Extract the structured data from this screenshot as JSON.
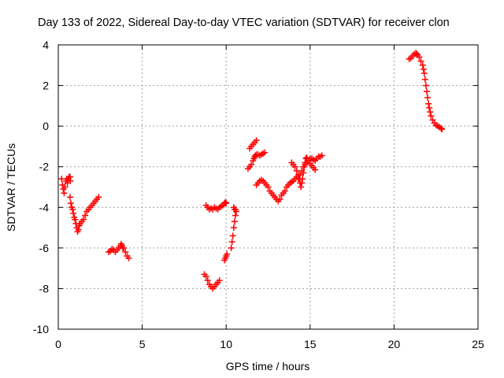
{
  "chart_data": {
    "type": "scatter",
    "title": "Day 133 of 2022, Sidereal Day-to-day VTEC variation (SDTVAR) for receiver clon",
    "xlabel": "GPS time / hours",
    "ylabel": "SDTVAR / TECUs",
    "xlim": [
      0,
      25
    ],
    "ylim": [
      -10,
      4
    ],
    "xticks": [
      0,
      5,
      10,
      15,
      20,
      25
    ],
    "yticks": [
      -10,
      -8,
      -6,
      -4,
      -2,
      0,
      2,
      4
    ],
    "grid": true,
    "marker": "+",
    "marker_color": "#ff0000",
    "series": [
      {
        "name": "SDTVAR",
        "segments": [
          [
            [
              0.2,
              -2.6
            ],
            [
              0.25,
              -2.9
            ],
            [
              0.3,
              -3.1
            ],
            [
              0.35,
              -3.3
            ],
            [
              0.4,
              -3.0
            ],
            [
              0.45,
              -2.7
            ],
            [
              0.5,
              -2.6
            ],
            [
              0.55,
              -2.8
            ],
            [
              0.6,
              -2.6
            ],
            [
              0.65,
              -2.5
            ],
            [
              0.7,
              -2.5
            ],
            [
              0.72,
              -2.7
            ],
            [
              0.7,
              -3.5
            ],
            [
              0.75,
              -3.8
            ],
            [
              0.8,
              -4.0
            ],
            [
              0.85,
              -4.1
            ],
            [
              0.9,
              -4.3
            ],
            [
              0.95,
              -4.5
            ],
            [
              1.0,
              -4.6
            ],
            [
              1.05,
              -4.8
            ],
            [
              1.1,
              -5.0
            ],
            [
              1.15,
              -5.2
            ],
            [
              1.2,
              -5.1
            ],
            [
              1.25,
              -4.9
            ],
            [
              1.3,
              -4.8
            ],
            [
              1.4,
              -4.7
            ],
            [
              1.5,
              -4.6
            ],
            [
              1.6,
              -4.4
            ],
            [
              1.7,
              -4.2
            ],
            [
              1.8,
              -4.1
            ],
            [
              1.9,
              -4.0
            ],
            [
              2.0,
              -3.9
            ],
            [
              2.1,
              -3.8
            ],
            [
              2.2,
              -3.7
            ],
            [
              2.3,
              -3.6
            ],
            [
              2.4,
              -3.5
            ]
          ],
          [
            [
              3.0,
              -6.2
            ],
            [
              3.1,
              -6.15
            ],
            [
              3.2,
              -6.05
            ],
            [
              3.3,
              -6.1
            ],
            [
              3.4,
              -6.2
            ],
            [
              3.5,
              -6.1
            ],
            [
              3.6,
              -6.0
            ],
            [
              3.7,
              -5.9
            ],
            [
              3.75,
              -5.8
            ],
            [
              3.8,
              -5.9
            ],
            [
              3.85,
              -6.0
            ],
            [
              3.9,
              -6.0
            ],
            [
              4.0,
              -6.2
            ],
            [
              4.1,
              -6.4
            ],
            [
              4.2,
              -6.5
            ]
          ],
          [
            [
              8.7,
              -7.3
            ],
            [
              8.8,
              -7.4
            ],
            [
              8.9,
              -7.6
            ],
            [
              9.0,
              -7.8
            ],
            [
              9.1,
              -7.9
            ],
            [
              9.2,
              -8.0
            ],
            [
              9.3,
              -7.9
            ],
            [
              9.4,
              -7.8
            ],
            [
              9.5,
              -7.7
            ],
            [
              9.6,
              -7.6
            ]
          ],
          [
            [
              8.8,
              -3.9
            ],
            [
              8.9,
              -4.0
            ],
            [
              9.0,
              -4.1
            ],
            [
              9.1,
              -4.05
            ],
            [
              9.2,
              -4.1
            ],
            [
              9.3,
              -4.0
            ],
            [
              9.4,
              -4.05
            ],
            [
              9.5,
              -4.1
            ],
            [
              9.6,
              -4.0
            ],
            [
              9.7,
              -3.95
            ],
            [
              9.8,
              -3.9
            ],
            [
              9.9,
              -3.8
            ],
            [
              9.95,
              -3.75
            ],
            [
              10.0,
              -3.8
            ]
          ],
          [
            [
              9.9,
              -6.6
            ],
            [
              9.95,
              -6.5
            ],
            [
              10.0,
              -6.4
            ],
            [
              10.05,
              -6.3
            ],
            [
              10.3,
              -6.0
            ],
            [
              10.35,
              -5.7
            ],
            [
              10.4,
              -5.4
            ],
            [
              10.45,
              -5.0
            ],
            [
              10.5,
              -4.7
            ],
            [
              10.55,
              -4.4
            ],
            [
              10.6,
              -4.2
            ],
            [
              10.5,
              -4.1
            ],
            [
              10.45,
              -4.0
            ],
            [
              10.55,
              -4.1
            ]
          ],
          [
            [
              11.3,
              -2.1
            ],
            [
              11.4,
              -2.0
            ],
            [
              11.5,
              -1.9
            ],
            [
              11.6,
              -1.7
            ],
            [
              11.65,
              -1.6
            ],
            [
              11.7,
              -1.5
            ],
            [
              11.75,
              -1.45
            ],
            [
              11.8,
              -1.4
            ],
            [
              11.9,
              -1.4
            ],
            [
              12.0,
              -1.45
            ],
            [
              12.1,
              -1.4
            ],
            [
              12.2,
              -1.35
            ],
            [
              12.3,
              -1.3
            ]
          ],
          [
            [
              11.4,
              -1.1
            ],
            [
              11.5,
              -1.0
            ],
            [
              11.6,
              -0.9
            ],
            [
              11.7,
              -0.8
            ],
            [
              11.8,
              -0.7
            ]
          ],
          [
            [
              11.8,
              -2.9
            ],
            [
              11.9,
              -2.8
            ],
            [
              12.0,
              -2.7
            ],
            [
              12.1,
              -2.65
            ],
            [
              12.2,
              -2.7
            ],
            [
              12.3,
              -2.8
            ],
            [
              12.4,
              -2.9
            ],
            [
              12.5,
              -3.0
            ],
            [
              12.6,
              -3.2
            ],
            [
              12.7,
              -3.3
            ],
            [
              12.8,
              -3.4
            ],
            [
              12.9,
              -3.5
            ],
            [
              13.0,
              -3.6
            ],
            [
              13.1,
              -3.7
            ],
            [
              13.2,
              -3.6
            ],
            [
              13.3,
              -3.4
            ],
            [
              13.4,
              -3.3
            ],
            [
              13.5,
              -3.2
            ],
            [
              13.6,
              -3.0
            ],
            [
              13.7,
              -2.9
            ],
            [
              13.8,
              -2.8
            ],
            [
              13.9,
              -2.75
            ],
            [
              14.0,
              -2.7
            ],
            [
              14.1,
              -2.6
            ],
            [
              14.2,
              -2.5
            ],
            [
              14.3,
              -2.6
            ],
            [
              14.4,
              -2.4
            ],
            [
              14.5,
              -2.2
            ],
            [
              14.6,
              -2.0
            ],
            [
              14.7,
              -1.9
            ],
            [
              14.8,
              -1.8
            ],
            [
              14.9,
              -1.7
            ],
            [
              15.0,
              -1.6
            ],
            [
              15.1,
              -1.6
            ],
            [
              15.2,
              -1.65
            ],
            [
              15.3,
              -1.7
            ],
            [
              15.4,
              -1.6
            ],
            [
              15.5,
              -1.5
            ],
            [
              15.6,
              -1.5
            ],
            [
              15.7,
              -1.45
            ]
          ],
          [
            [
              13.9,
              -1.8
            ],
            [
              14.0,
              -1.9
            ],
            [
              14.1,
              -2.0
            ],
            [
              14.2,
              -2.2
            ],
            [
              14.3,
              -2.4
            ],
            [
              14.35,
              -2.6
            ],
            [
              14.4,
              -2.8
            ],
            [
              14.45,
              -3.0
            ],
            [
              14.5,
              -2.8
            ],
            [
              14.55,
              -2.6
            ],
            [
              14.6,
              -2.3
            ],
            [
              14.65,
              -2.0
            ],
            [
              14.7,
              -1.8
            ],
            [
              14.75,
              -1.6
            ],
            [
              14.8,
              -1.55
            ],
            [
              14.9,
              -1.7
            ],
            [
              15.0,
              -1.85
            ],
            [
              15.1,
              -1.95
            ],
            [
              15.2,
              -2.05
            ],
            [
              15.3,
              -2.15
            ]
          ],
          [
            [
              20.9,
              3.3
            ],
            [
              21.0,
              3.35
            ],
            [
              21.1,
              3.45
            ],
            [
              21.2,
              3.55
            ],
            [
              21.3,
              3.6
            ],
            [
              21.35,
              3.55
            ],
            [
              21.4,
              3.5
            ],
            [
              21.5,
              3.4
            ],
            [
              21.6,
              3.2
            ],
            [
              21.7,
              3.0
            ],
            [
              21.75,
              2.8
            ],
            [
              21.8,
              2.6
            ],
            [
              21.85,
              2.3
            ],
            [
              21.9,
              2.0
            ],
            [
              21.95,
              1.7
            ],
            [
              22.0,
              1.4
            ],
            [
              22.05,
              1.1
            ],
            [
              22.1,
              0.9
            ],
            [
              22.15,
              0.7
            ],
            [
              22.2,
              0.5
            ],
            [
              22.3,
              0.3
            ],
            [
              22.4,
              0.15
            ],
            [
              22.5,
              0.05
            ],
            [
              22.6,
              0.0
            ],
            [
              22.7,
              -0.05
            ],
            [
              22.8,
              -0.1
            ],
            [
              22.85,
              -0.15
            ]
          ]
        ]
      }
    ]
  }
}
